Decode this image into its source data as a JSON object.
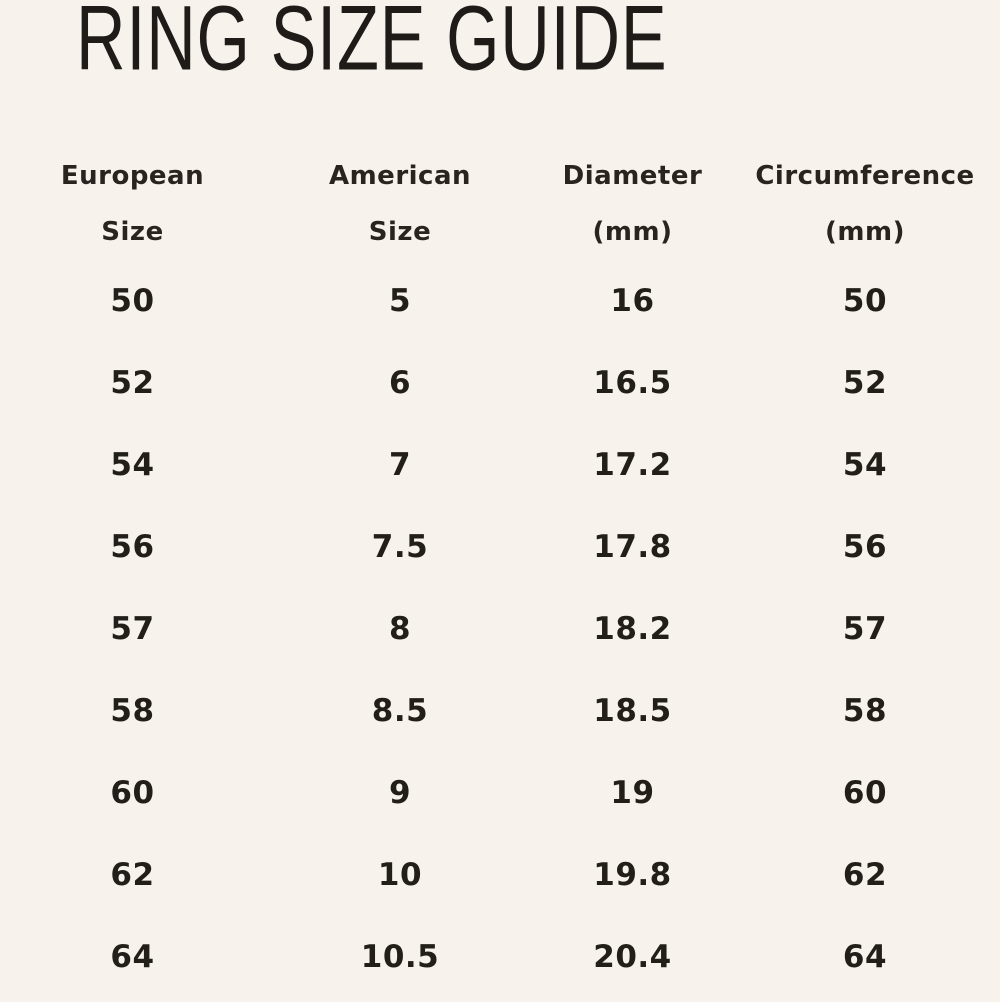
{
  "chart_data": {
    "type": "table",
    "title": "RING SIZE GUIDE",
    "columns": [
      {
        "line1": "European",
        "line2": "Size"
      },
      {
        "line1": "American",
        "line2": "Size"
      },
      {
        "line1": "Diameter",
        "line2": "(mm)"
      },
      {
        "line1": "Circumference",
        "line2": "(mm)"
      }
    ],
    "rows": [
      [
        "50",
        "5",
        "16",
        "50"
      ],
      [
        "52",
        "6",
        "16.5",
        "52"
      ],
      [
        "54",
        "7",
        "17.2",
        "54"
      ],
      [
        "56",
        "7.5",
        "17.8",
        "56"
      ],
      [
        "57",
        "8",
        "18.2",
        "57"
      ],
      [
        "58",
        "8.5",
        "18.5",
        "58"
      ],
      [
        "60",
        "9",
        "19",
        "60"
      ],
      [
        "62",
        "10",
        "19.8",
        "62"
      ],
      [
        "64",
        "10.5",
        "20.4",
        "64"
      ]
    ]
  },
  "colors": {
    "background": "#f7f3ec",
    "text": "#24201d"
  }
}
